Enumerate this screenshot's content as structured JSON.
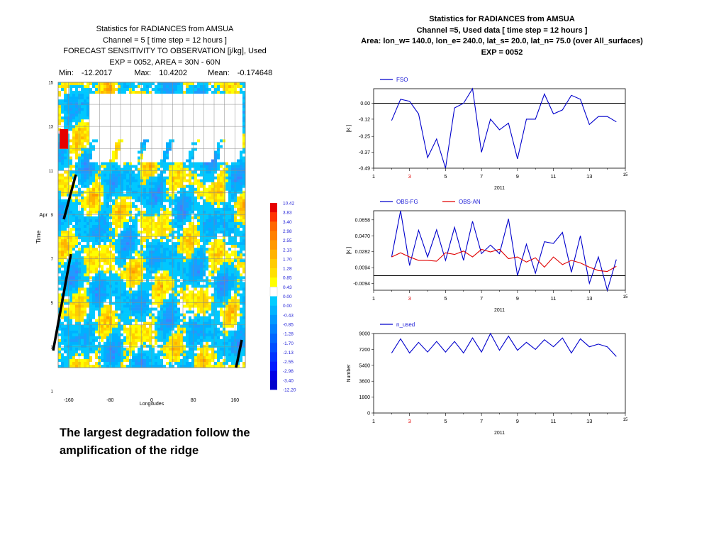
{
  "left_panel": {
    "title_lines": [
      "Statistics for  RADIANCES  from AMSUA",
      "Channel = 5 [ time step =  12 hours ]",
      "FORECAST SENSITIVITY TO OBSERVATION [j/kg], Used",
      "EXP = 0052, AREA = 30N - 60N"
    ],
    "stats": {
      "min_label": "Min:",
      "min_value": "-12.2017",
      "max_label": "Max:",
      "max_value": "10.4202",
      "mean_label": "Mean:",
      "mean_value": "-0.174648"
    },
    "y_axis_label": "Time",
    "y_ticks": [
      "1",
      "3",
      "5",
      "7",
      "9",
      "11",
      "13",
      "15"
    ],
    "y_month": "Apr",
    "x_axis_label": "Longitudes",
    "x_ticks": [
      "-160",
      "-80",
      "0",
      "80",
      "160"
    ],
    "colorbar": {
      "labels": [
        "10.42",
        "3.83",
        "3.40",
        "2.98",
        "2.55",
        "2.13",
        "1.70",
        "1.28",
        "0.85",
        "0.43",
        "0.00",
        "0.00",
        "-0.43",
        "-0.85",
        "-1.28",
        "-1.70",
        "-2.13",
        "-2.55",
        "-2.98",
        "-3.40",
        "-12.20"
      ],
      "colors": [
        "#e60000",
        "#ff3300",
        "#ff6600",
        "#ff8000",
        "#ff9900",
        "#ffb300",
        "#ffcc00",
        "#ffe000",
        "#ffff00",
        "#ffffff",
        "#00ccff",
        "#00b3ff",
        "#0099ff",
        "#0080ff",
        "#0066ff",
        "#004dff",
        "#0033ff",
        "#001aff",
        "#0000e6",
        "#0000cc"
      ]
    }
  },
  "right_panel": {
    "title_lines": [
      "Statistics for  RADIANCES  from AMSUA",
      "Channel =5, Used data [ time step = 12 hours ]",
      "Area: lon_w= 140.0, lon_e= 240.0, lat_s=  20.0, lat_n=  75.0 (over All_surfaces)",
      "EXP =  0052"
    ]
  },
  "caption": "The largest degradation follow the amplification of the ridge",
  "colors": {
    "blue_series": "#0000cc",
    "red_series": "#e00000",
    "highlight_tick": "#e00000"
  },
  "chart_data": [
    {
      "type": "heatmap",
      "title": "FORECAST SENSITIVITY TO OBSERVATION [j/kg], Used",
      "xlabel": "Longitudes",
      "ylabel": "Time",
      "xlim": [
        -180,
        180
      ],
      "ylim": [
        1,
        15
      ],
      "value_range": [
        -12.2017,
        10.4202
      ],
      "annotations": [
        "Min: -12.2017",
        "Max: 10.4202",
        "Mean: -0.174648"
      ]
    },
    {
      "type": "line",
      "xlabel": "2011",
      "ylabel": "[K ]",
      "xlim": [
        1,
        15
      ],
      "x_ticks": [
        "1",
        "3",
        "5",
        "7",
        "9",
        "11",
        "13",
        "15"
      ],
      "y_ticks": [
        "0.00",
        "-0.12",
        "-0.25",
        "-0.37",
        "-0.49"
      ],
      "ylim": [
        -0.49,
        0.11
      ],
      "x": [
        2,
        2.5,
        3,
        3.5,
        4,
        4.5,
        5,
        5.5,
        6,
        6.5,
        7,
        7.5,
        8,
        8.5,
        9,
        9.5,
        10,
        10.5,
        11,
        11.5,
        12,
        12.5,
        13,
        13.5,
        14,
        14.5
      ],
      "series": [
        {
          "name": "FSO",
          "color": "#0000cc",
          "values": [
            -0.13,
            0.03,
            0.015,
            -0.08,
            -0.41,
            -0.27,
            -0.49,
            -0.035,
            0.0,
            0.11,
            -0.37,
            -0.12,
            -0.2,
            -0.15,
            -0.42,
            -0.12,
            -0.12,
            0.07,
            -0.08,
            -0.05,
            0.06,
            0.03,
            -0.16,
            -0.1,
            -0.1,
            -0.14
          ]
        }
      ]
    },
    {
      "type": "line",
      "xlabel": "2011",
      "ylabel": "[K ]",
      "xlim": [
        1,
        15
      ],
      "x_ticks": [
        "1",
        "3",
        "5",
        "7",
        "9",
        "11",
        "13",
        "15"
      ],
      "y_ticks": [
        "0.0658",
        "0.0470",
        "0.0282",
        "0.0094",
        "-0.0094"
      ],
      "ylim": [
        -0.0172,
        0.0765
      ],
      "x": [
        2,
        2.5,
        3,
        3.5,
        4,
        4.5,
        5,
        5.5,
        6,
        6.5,
        7,
        7.5,
        8,
        8.5,
        9,
        9.5,
        10,
        10.5,
        11,
        11.5,
        12,
        12.5,
        13,
        13.5,
        14,
        14.5
      ],
      "series": [
        {
          "name": "OBS-FG",
          "color": "#0000cc",
          "values": [
            0.022,
            0.0765,
            0.012,
            0.0535,
            0.022,
            0.054,
            0.018,
            0.057,
            0.018,
            0.064,
            0.026,
            0.036,
            0.026,
            0.067,
            0.0,
            0.037,
            0.003,
            0.04,
            0.038,
            0.051,
            0.004,
            0.047,
            -0.009,
            0.022,
            -0.0172,
            0.019
          ]
        },
        {
          "name": "OBS-AN",
          "color": "#e00000",
          "values": [
            0.022,
            0.027,
            0.022,
            0.018,
            0.018,
            0.017,
            0.027,
            0.025,
            0.029,
            0.022,
            0.031,
            0.028,
            0.031,
            0.02,
            0.022,
            0.016,
            0.021,
            0.01,
            0.022,
            0.013,
            0.018,
            0.015,
            0.01,
            0.006,
            0.005,
            0.011
          ]
        }
      ]
    },
    {
      "type": "line",
      "xlabel": "2011",
      "ylabel": "Number",
      "xlim": [
        1,
        15
      ],
      "x_ticks": [
        "1",
        "3",
        "5",
        "7",
        "9",
        "11",
        "13",
        "15"
      ],
      "y_ticks": [
        "9000",
        "7200",
        "5400",
        "3600",
        "1800",
        "0"
      ],
      "ylim": [
        0,
        9000
      ],
      "x": [
        2,
        2.5,
        3,
        3.5,
        4,
        4.5,
        5,
        5.5,
        6,
        6.5,
        7,
        7.5,
        8,
        8.5,
        9,
        9.5,
        10,
        10.5,
        11,
        11.5,
        12,
        12.5,
        13,
        13.5,
        14,
        14.5
      ],
      "series": [
        {
          "name": "n_used",
          "color": "#0000cc",
          "values": [
            6800,
            8400,
            6800,
            8000,
            6900,
            8100,
            6900,
            8100,
            6800,
            8500,
            6900,
            9000,
            7100,
            8700,
            7100,
            8000,
            7200,
            8300,
            7500,
            8500,
            6800,
            8400,
            7500,
            7800,
            7500,
            6400
          ]
        }
      ]
    }
  ]
}
